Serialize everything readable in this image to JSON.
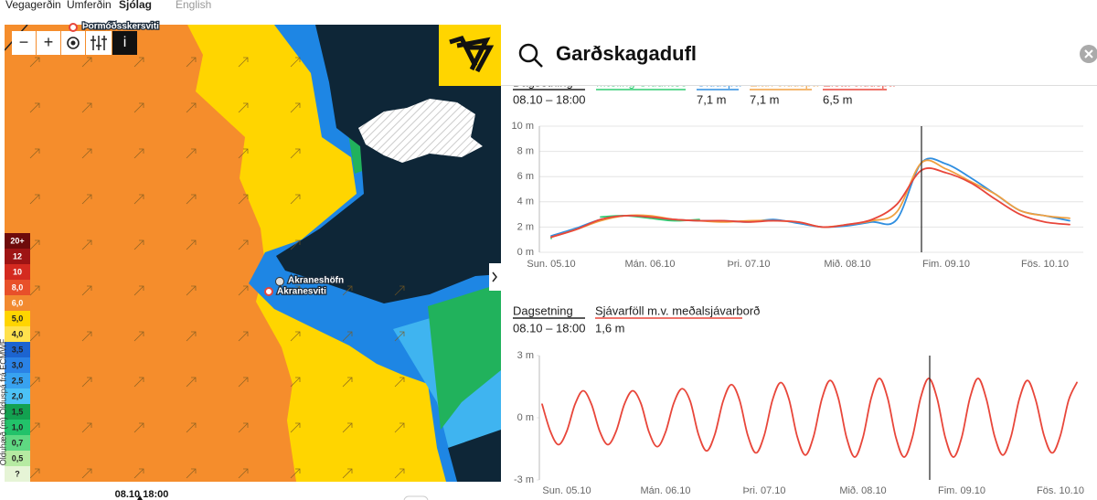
{
  "nav": {
    "items": [
      "Vegagerðin",
      "Umferðin",
      "Sjólag",
      "English"
    ]
  },
  "map": {
    "controls": [
      "−",
      "+",
      "i"
    ],
    "places": [
      "Þormóðsskersviti",
      "Akraneshöfn",
      "Akranesviti"
    ],
    "time": "08.10 18:00",
    "legend": {
      "title": "Ölduhæð (m) Ölduspá frá ECMWF",
      "items": [
        {
          "label": "20+",
          "color": "#6e0b0b"
        },
        {
          "label": "12",
          "color": "#9e1414"
        },
        {
          "label": "10",
          "color": "#d42a20"
        },
        {
          "label": "8,0",
          "color": "#e8502a"
        },
        {
          "label": "6,0",
          "color": "#f28a30"
        },
        {
          "label": "5,0",
          "color": "#ffd500"
        },
        {
          "label": "4,0",
          "color": "#ffe14d"
        },
        {
          "label": "3,5",
          "color": "#1c64d0"
        },
        {
          "label": "3,0",
          "color": "#2a82e6"
        },
        {
          "label": "2,5",
          "color": "#38a2f0"
        },
        {
          "label": "2,0",
          "color": "#4cc2f6"
        },
        {
          "label": "1,5",
          "color": "#13a150"
        },
        {
          "label": "1,0",
          "color": "#22c26a"
        },
        {
          "label": "0,7",
          "color": "#5fd882"
        },
        {
          "label": "0,5",
          "color": "#b6eaa2"
        },
        {
          "label": "?",
          "color": "#e6f4d6"
        }
      ]
    }
  },
  "search": {
    "query": "Garðskagadufl"
  },
  "chart_data": [
    {
      "type": "line",
      "date_label": "Dagsetning",
      "date_value": "08.10 – 18:00",
      "grid": true,
      "categories": [
        "Sun. 05.10",
        null,
        null,
        null,
        "Mán. 06.10",
        null,
        null,
        null,
        "Þri. 07.10",
        null,
        null,
        null,
        "Mið. 08.10",
        null,
        null,
        null,
        "Fim. 09.10",
        null,
        null,
        null,
        "Fös. 10.10",
        null
      ],
      "ylim": [
        0,
        10
      ],
      "yticks": [
        {
          "value": 0,
          "label": "0 m"
        },
        {
          "value": 2,
          "label": "2 m"
        },
        {
          "value": 4,
          "label": "4 m"
        },
        {
          "value": 6,
          "label": "6 m"
        },
        {
          "value": 8,
          "label": "8 m"
        },
        {
          "value": 10,
          "label": "10 m"
        }
      ],
      "series": [
        {
          "name": "Mæling Ölduhæð",
          "color": "#2ecc71",
          "values": [
            1.1,
            null,
            2.8,
            2.9,
            2.7,
            2.5,
            2.6,
            null,
            null,
            null,
            null,
            null,
            null,
            null,
            null,
            null,
            null,
            null,
            null,
            null,
            null,
            null
          ]
        },
        {
          "name": "Ölduspá",
          "color": "#2f8ee0",
          "current_label": "7,1 m",
          "values": [
            1.3,
            1.9,
            2.6,
            2.9,
            2.8,
            2.6,
            2.5,
            2.5,
            2.4,
            2.6,
            2.3,
            2.0,
            2.1,
            2.4,
            2.6,
            7.1,
            7.0,
            5.9,
            4.6,
            3.3,
            2.9,
            2.5
          ]
        },
        {
          "name": "Elan ölduspá",
          "color": "#f0a040",
          "current_label": "7,1 m",
          "values": [
            1.2,
            1.8,
            2.5,
            2.9,
            2.9,
            2.6,
            2.5,
            2.4,
            2.5,
            2.5,
            2.4,
            2.0,
            2.2,
            2.5,
            3.2,
            7.1,
            6.6,
            5.6,
            4.6,
            3.3,
            2.9,
            2.7
          ]
        },
        {
          "name": "Efsta ölduspá",
          "color": "#e8463a",
          "current_label": "6,5 m",
          "values": [
            1.2,
            1.8,
            2.6,
            2.9,
            2.8,
            2.6,
            2.5,
            2.5,
            2.4,
            2.5,
            2.4,
            2.0,
            2.2,
            2.6,
            3.8,
            6.5,
            6.3,
            5.5,
            4.2,
            3.0,
            2.4,
            2.2
          ]
        }
      ]
    },
    {
      "type": "line",
      "date_label": "Dagsetning",
      "date_value": "08.10 – 18:00",
      "grid": false,
      "categories": [
        null,
        null,
        null,
        "Sun. 05.10",
        null,
        null,
        null,
        null,
        null,
        null,
        null,
        null,
        null,
        null,
        null,
        "Mán. 06.10",
        null,
        null,
        null,
        null,
        null,
        null,
        null,
        null,
        null,
        null,
        null,
        "Þri. 07.10",
        null,
        null,
        null,
        null,
        null,
        null,
        null,
        null,
        null,
        null,
        null,
        "Mið. 08.10",
        null,
        null,
        null,
        null,
        null,
        null,
        null,
        null,
        null,
        null,
        null,
        "Fim. 09.10",
        null,
        null,
        null,
        null,
        null,
        null,
        null,
        null,
        null,
        null,
        null,
        "Fös. 10.10",
        null,
        null
      ],
      "ylim": [
        -3,
        3
      ],
      "yticks": [
        {
          "value": -3,
          "label": "-3 m"
        },
        {
          "value": 0,
          "label": "0 m"
        },
        {
          "value": 3,
          "label": "3 m"
        }
      ],
      "series": [
        {
          "name": "Sjávarföll m.v. meðalsjávarborð",
          "color": "#e8463a",
          "current_label": "1,6 m",
          "values": [
            0.65,
            -0.65,
            -1.3,
            -0.65,
            0.65,
            1.3,
            0.65,
            -0.65,
            -1.3,
            -0.65,
            0.65,
            1.3,
            0.7,
            -0.7,
            -1.4,
            -0.7,
            0.7,
            1.4,
            0.8,
            -0.8,
            -1.6,
            -0.8,
            0.8,
            1.6,
            0.85,
            -0.85,
            -1.7,
            -0.85,
            0.85,
            1.7,
            0.9,
            -0.9,
            -1.8,
            -0.9,
            0.9,
            1.8,
            0.95,
            -0.95,
            -1.9,
            -0.95,
            0.95,
            1.9,
            0.95,
            -0.95,
            -1.9,
            -0.95,
            0.95,
            1.9,
            0.95,
            -0.95,
            -1.9,
            -0.95,
            0.95,
            1.9,
            0.9,
            -0.9,
            -1.8,
            -0.9,
            0.9,
            1.8,
            0.85,
            -0.85,
            -1.7,
            -0.85,
            0.85,
            1.7
          ]
        }
      ]
    }
  ]
}
